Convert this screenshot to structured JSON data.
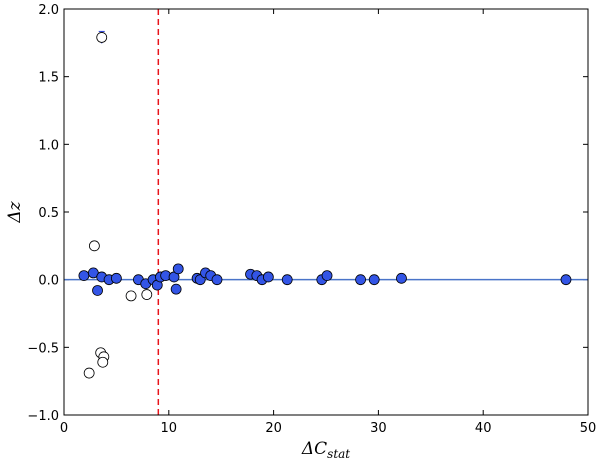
{
  "chart_data": {
    "type": "scatter",
    "xlabel": "ΔC",
    "xlabel_sub": "stat",
    "ylabel": "Δz",
    "xlim": [
      0,
      50
    ],
    "ylim": [
      -1.0,
      2.0
    ],
    "x_ticks": [
      0,
      10,
      20,
      30,
      40,
      50
    ],
    "x_tick_labels": [
      "0",
      "10",
      "20",
      "30",
      "40",
      "50"
    ],
    "y_ticks": [
      -1.0,
      -0.5,
      0.0,
      0.5,
      1.0,
      1.5,
      2.0
    ],
    "y_tick_labels": [
      "−1.0",
      "−0.5",
      "0.0",
      "0.5",
      "1.0",
      "1.5",
      "2.0"
    ],
    "grid": false,
    "zero_line": {
      "y": 0.0,
      "color": "#4a74c9"
    },
    "threshold_line": {
      "x": 9.0,
      "color": "#e8141b",
      "style": "dashed"
    },
    "colors": {
      "filled": "#3355e6",
      "open": "#ffffff",
      "edge": "#000000",
      "errorbar": "#2b3fd8",
      "highlight": "#d6234a"
    },
    "series": [
      {
        "marker": "filled",
        "points": [
          [
            1.9,
            0.03
          ],
          [
            2.8,
            0.05
          ],
          [
            3.2,
            -0.08
          ],
          [
            3.6,
            0.02
          ],
          [
            4.3,
            0.0
          ],
          [
            5.0,
            0.01
          ],
          [
            7.1,
            0.0
          ],
          [
            7.8,
            -0.03
          ],
          [
            8.5,
            0.0
          ],
          [
            8.9,
            -0.04
          ],
          [
            9.2,
            0.02
          ],
          [
            9.7,
            0.03
          ],
          [
            10.5,
            0.02
          ],
          [
            10.7,
            -0.07
          ],
          [
            10.9,
            0.08
          ],
          [
            12.7,
            0.01
          ],
          [
            13.0,
            0.0
          ],
          [
            13.5,
            0.05
          ],
          [
            14.0,
            0.03
          ],
          [
            14.6,
            0.0
          ],
          [
            17.8,
            0.04
          ],
          [
            18.4,
            0.03
          ],
          [
            18.9,
            0.0
          ],
          [
            19.5,
            0.02
          ],
          [
            21.3,
            0.0
          ],
          [
            24.6,
            0.0
          ],
          [
            25.1,
            0.03
          ],
          [
            28.3,
            0.0
          ],
          [
            29.6,
            0.0
          ],
          [
            32.2,
            0.01
          ],
          [
            47.9,
            0.0
          ]
        ]
      },
      {
        "marker": "open",
        "points": [
          [
            3.6,
            1.79
          ],
          [
            2.9,
            0.25
          ],
          [
            6.4,
            -0.12
          ],
          [
            7.9,
            -0.11
          ],
          [
            3.5,
            -0.54
          ],
          [
            3.8,
            -0.57
          ],
          [
            3.7,
            -0.61
          ],
          [
            2.4,
            -0.69
          ]
        ]
      }
    ]
  }
}
